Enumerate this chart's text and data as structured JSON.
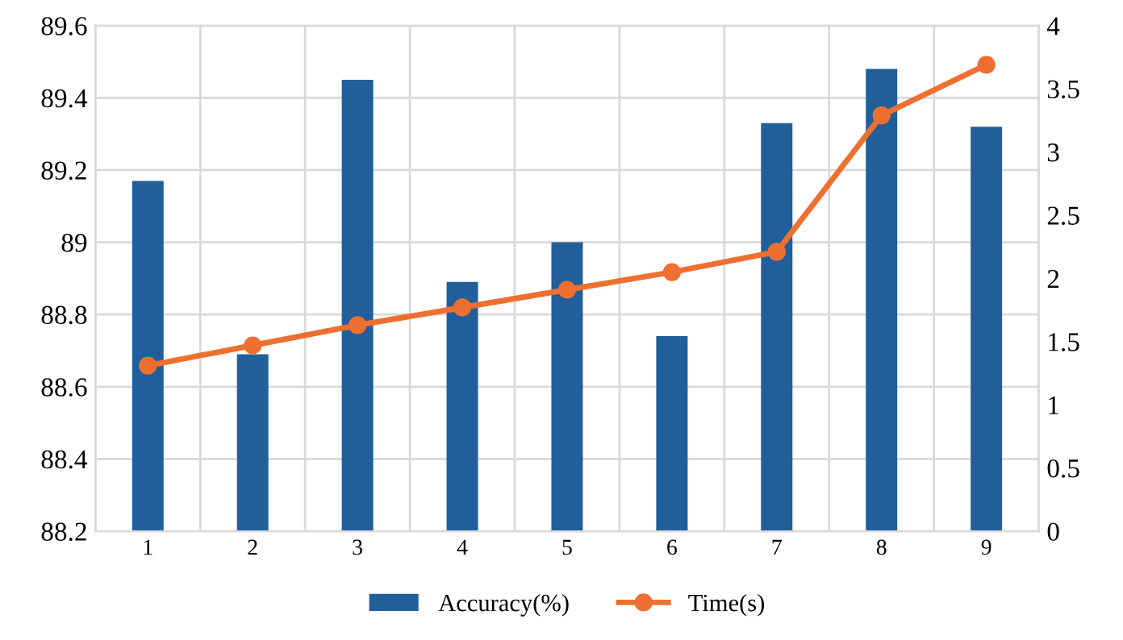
{
  "chart_data": {
    "type": "bar",
    "categories": [
      "1",
      "2",
      "3",
      "4",
      "5",
      "6",
      "7",
      "8",
      "9"
    ],
    "series": [
      {
        "name": "Accuracy(%)",
        "color": "#215f9a",
        "values": [
          89.17,
          88.69,
          89.45,
          88.89,
          89.0,
          88.74,
          89.33,
          89.48,
          89.32
        ]
      },
      {
        "name": "Time(s)",
        "color": "#ed7030",
        "type": "line",
        "axis": "y2",
        "marker": "circle",
        "values": [
          1.31,
          1.47,
          1.63,
          1.77,
          1.91,
          2.05,
          2.21,
          3.29,
          3.69
        ]
      }
    ],
    "ylim": [
      88.2,
      89.6
    ],
    "yticks": [
      88.2,
      88.4,
      88.6,
      88.8,
      89,
      89.2,
      89.4,
      89.6
    ],
    "y2lim": [
      0,
      4
    ],
    "y2ticks": [
      0,
      0.5,
      1,
      1.5,
      2,
      2.5,
      3,
      3.5,
      4
    ],
    "grid": true,
    "legend": "bottom"
  }
}
